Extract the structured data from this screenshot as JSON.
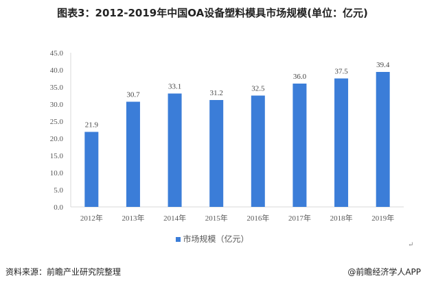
{
  "chart_data": {
    "type": "bar",
    "title": "图表3：2012-2019年中国OA设备塑料模具市场规模(单位：亿元)",
    "categories": [
      "2012年",
      "2013年",
      "2014年",
      "2015年",
      "2016年",
      "2017年",
      "2018年",
      "2019年"
    ],
    "series": [
      {
        "name": "市场规模（亿元）",
        "values": [
          21.9,
          30.7,
          33.1,
          31.2,
          32.5,
          36.0,
          37.5,
          39.4
        ]
      }
    ],
    "ylim": [
      0,
      45
    ],
    "yticks": [
      "0.0",
      "5.0",
      "10.0",
      "15.0",
      "20.0",
      "25.0",
      "30.0",
      "35.0",
      "40.0",
      "45.0"
    ],
    "xlabel": "",
    "ylabel": "",
    "legend": "bottom-center",
    "grid": false,
    "bar_color": "#3b7dd8"
  },
  "footer": {
    "source": "资料来源：前瞻产业研究院整理",
    "credit": "@前瞻经济学人APP",
    "return_mark": "↵"
  }
}
